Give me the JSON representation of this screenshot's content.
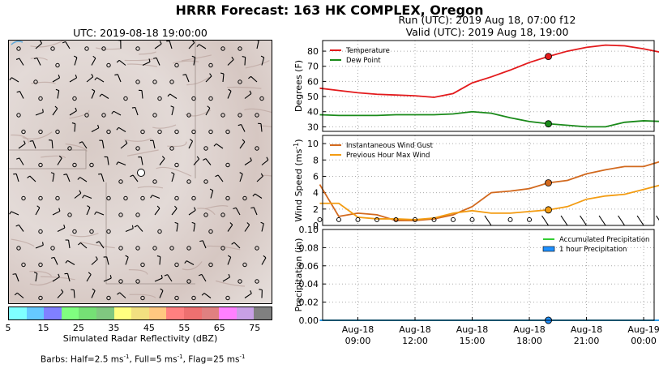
{
  "title": "HRRR Forecast: 163 HK COMPLEX, Oregon",
  "map": {
    "title": "UTC: 2019-08-18 19:00:00",
    "colorbar": {
      "label": "Simulated Radar Reflectivity (dBZ)",
      "ticks": [
        "5",
        "15",
        "25",
        "35",
        "45",
        "55",
        "65",
        "75"
      ],
      "colors": [
        "#7fffff",
        "#66c9ff",
        "#8080ff",
        "#80ff80",
        "#75e075",
        "#80c880",
        "#ffff80",
        "#f2e080",
        "#ffc880",
        "#ff8080",
        "#ee7070",
        "#e08080",
        "#ff80ff",
        "#c8a0e6",
        "#808080"
      ]
    },
    "barbs_note_prefix": "Barbs: Half=2.5 ms",
    "barbs_note_mid1": ", Full=5 ms",
    "barbs_note_mid2": ", Flag=25 ms",
    "barbs_note_exp": "-1"
  },
  "run_text": "Run (UTC): 2019 Aug 18, 07:00 f12",
  "valid_text": "Valid (UTC): 2019 Aug 18, 19:00",
  "chart_data": [
    {
      "type": "line",
      "ylabel": "Degrees (F)",
      "ylim": [
        27,
        87
      ],
      "yticks": [
        "30",
        "40",
        "50",
        "60",
        "70",
        "80"
      ],
      "legend_position": "top-left",
      "grid": true,
      "x": [
        "2019-08-18 07:00",
        "2019-08-18 08:00",
        "2019-08-18 09:00",
        "2019-08-18 10:00",
        "2019-08-18 11:00",
        "2019-08-18 12:00",
        "2019-08-18 13:00",
        "2019-08-18 14:00",
        "2019-08-18 15:00",
        "2019-08-18 16:00",
        "2019-08-18 17:00",
        "2019-08-18 18:00",
        "2019-08-18 19:00",
        "2019-08-18 20:00",
        "2019-08-18 21:00",
        "2019-08-18 22:00",
        "2019-08-18 23:00",
        "2019-08-19 00:00",
        "2019-08-19 01:00"
      ],
      "series": [
        {
          "name": "Temperature",
          "color": "#e31a1c",
          "values": [
            55.5,
            54,
            52.5,
            51.5,
            51,
            50.5,
            49.5,
            52,
            59,
            63,
            67.5,
            72.5,
            76.5,
            80,
            82.5,
            84,
            83.5,
            81.5,
            79
          ]
        },
        {
          "name": "Dew Point",
          "color": "#1a8a1a",
          "values": [
            38,
            37.5,
            37.5,
            37.5,
            38,
            38,
            38,
            38.5,
            40,
            39,
            36,
            33.5,
            32,
            31,
            30,
            30,
            33,
            34,
            33.5
          ]
        }
      ],
      "marker_index": 12
    },
    {
      "type": "line",
      "ylabel": "Wind Speed (ms",
      "ylabel_exp": "-1",
      "ylabel_close": ")",
      "ylim": [
        0,
        11
      ],
      "yticks": [
        "0",
        "2",
        "4",
        "6",
        "8",
        "10"
      ],
      "legend_position": "top-left",
      "grid": true,
      "x": [
        "2019-08-18 07:00",
        "2019-08-18 08:00",
        "2019-08-18 09:00",
        "2019-08-18 10:00",
        "2019-08-18 11:00",
        "2019-08-18 12:00",
        "2019-08-18 13:00",
        "2019-08-18 14:00",
        "2019-08-18 15:00",
        "2019-08-18 16:00",
        "2019-08-18 17:00",
        "2019-08-18 18:00",
        "2019-08-18 19:00",
        "2019-08-18 20:00",
        "2019-08-18 21:00",
        "2019-08-18 22:00",
        "2019-08-18 23:00",
        "2019-08-19 00:00",
        "2019-08-19 01:00"
      ],
      "series": [
        {
          "name": "Instantaneous Wind Gust",
          "color": "#d2691e",
          "values": [
            5,
            1.1,
            1.5,
            1.3,
            0.6,
            0.6,
            0.8,
            1.3,
            2.3,
            4.0,
            4.2,
            4.5,
            5.2,
            5.5,
            6.3,
            6.8,
            7.2,
            7.2,
            7.9
          ]
        },
        {
          "name": "Previous Hour Max Wind",
          "color": "#f39c12",
          "values": [
            2.7,
            2.7,
            1.0,
            0.8,
            0.8,
            0.7,
            0.9,
            1.5,
            1.8,
            1.5,
            1.5,
            1.7,
            1.9,
            2.3,
            3.2,
            3.6,
            3.8,
            4.4,
            5.0
          ]
        }
      ],
      "marker_index": 12
    },
    {
      "type": "line",
      "ylabel": "Precipitation (in)",
      "ylim": [
        0,
        0.1
      ],
      "yticks": [
        "0.00",
        "0.02",
        "0.04",
        "0.06",
        "0.08",
        "0.10"
      ],
      "legend_position": "top-right",
      "grid": true,
      "xticks": [
        {
          "label": "Aug-18",
          "label2": "09:00",
          "index": 2
        },
        {
          "label": "Aug-18",
          "label2": "12:00",
          "index": 5
        },
        {
          "label": "Aug-18",
          "label2": "15:00",
          "index": 8
        },
        {
          "label": "Aug-18",
          "label2": "18:00",
          "index": 11
        },
        {
          "label": "Aug-18",
          "label2": "21:00",
          "index": 14
        },
        {
          "label": "Aug-19",
          "label2": "00:00",
          "index": 17
        }
      ],
      "x": [
        "2019-08-18 07:00",
        "2019-08-18 08:00",
        "2019-08-18 09:00",
        "2019-08-18 10:00",
        "2019-08-18 11:00",
        "2019-08-18 12:00",
        "2019-08-18 13:00",
        "2019-08-18 14:00",
        "2019-08-18 15:00",
        "2019-08-18 16:00",
        "2019-08-18 17:00",
        "2019-08-18 18:00",
        "2019-08-18 19:00",
        "2019-08-18 20:00",
        "2019-08-18 21:00",
        "2019-08-18 22:00",
        "2019-08-18 23:00",
        "2019-08-19 00:00",
        "2019-08-19 01:00"
      ],
      "series": [
        {
          "name": "Accumulated Precipitation",
          "color": "#32cd32",
          "values": [
            0,
            0,
            0,
            0,
            0,
            0,
            0,
            0,
            0,
            0,
            0,
            0,
            0,
            0,
            0,
            0,
            0,
            0,
            0
          ]
        },
        {
          "name": "1 hour Precipitation",
          "color": "#1e90ff",
          "values": [
            0,
            0,
            0,
            0,
            0,
            0,
            0,
            0,
            0,
            0,
            0,
            0,
            0,
            0,
            0,
            0,
            0,
            0,
            0
          ]
        }
      ],
      "marker_index": 12
    }
  ]
}
